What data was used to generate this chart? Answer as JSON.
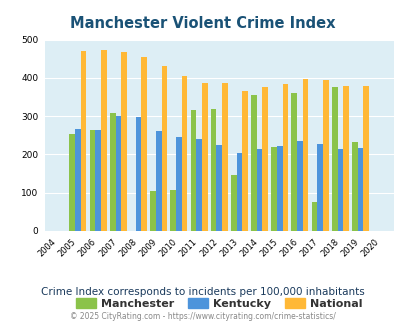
{
  "title": "Manchester Violent Crime Index",
  "years": [
    2004,
    2005,
    2006,
    2007,
    2008,
    2009,
    2010,
    2011,
    2012,
    2013,
    2014,
    2015,
    2016,
    2017,
    2018,
    2019,
    2020
  ],
  "manchester": [
    null,
    253,
    265,
    308,
    null,
    105,
    107,
    315,
    318,
    147,
    354,
    220,
    360,
    75,
    375,
    232,
    null
  ],
  "kentucky": [
    null,
    267,
    264,
    300,
    298,
    260,
    245,
    241,
    224,
    203,
    215,
    221,
    235,
    228,
    215,
    218,
    null
  ],
  "national": [
    null,
    469,
    473,
    467,
    455,
    432,
    405,
    387,
    387,
    367,
    376,
    383,
    397,
    394,
    380,
    379,
    null
  ],
  "manchester_color": "#8bc34a",
  "kentucky_color": "#4d94db",
  "national_color": "#ffb836",
  "bg_color": "#ddeef5",
  "title_color": "#1a5276",
  "ylabel_max": 500,
  "yticks": [
    0,
    100,
    200,
    300,
    400,
    500
  ],
  "subtitle": "Crime Index corresponds to incidents per 100,000 inhabitants",
  "footer": "© 2025 CityRating.com - https://www.cityrating.com/crime-statistics/"
}
